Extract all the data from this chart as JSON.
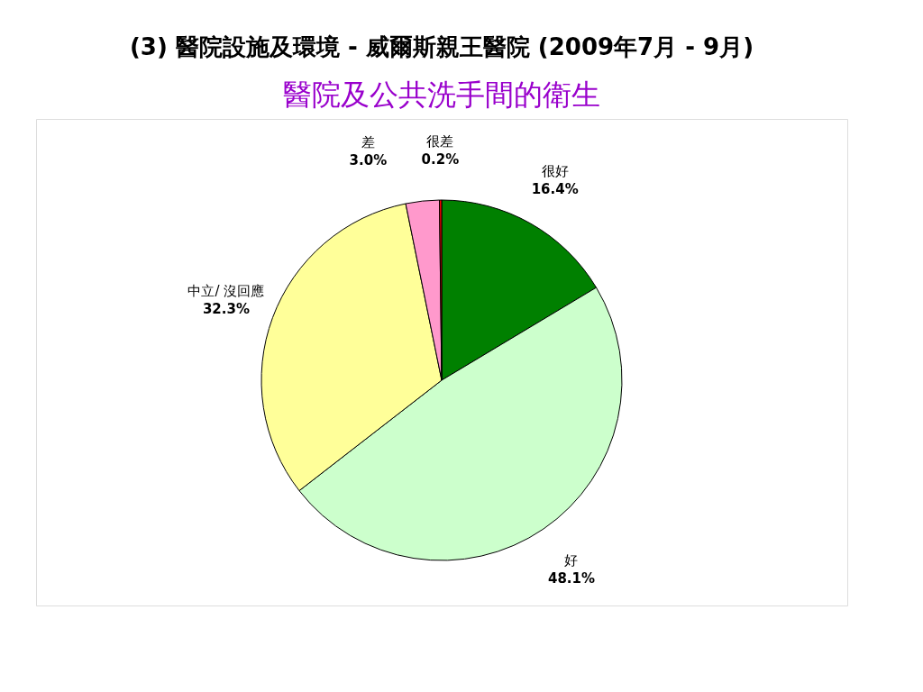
{
  "chart_data": {
    "type": "pie",
    "title": "(3) 醫院設施及環境 - 威爾斯親王醫院 (2009年7月 - 9月)",
    "subtitle": "醫院及公共洗手間的衛生",
    "categories": [
      "很好",
      "好",
      "中立/ 沒回應",
      "差",
      "很差"
    ],
    "values": [
      16.4,
      48.1,
      32.3,
      3.0,
      0.2
    ],
    "colors": [
      "#008000",
      "#ccffcc",
      "#ffff99",
      "#ff99cc",
      "#ff0000"
    ],
    "value_labels": [
      "16.4%",
      "48.1%",
      "32.3%",
      "3.0%",
      "0.2%"
    ]
  }
}
